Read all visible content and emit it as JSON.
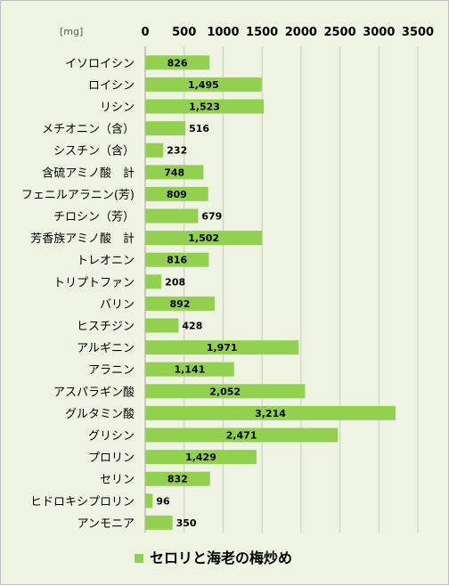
{
  "chart_data": {
    "type": "bar",
    "orientation": "horizontal",
    "unit_label": "[mg]",
    "xlim": [
      0,
      3500
    ],
    "ticks": [
      0,
      500,
      1000,
      1500,
      2000,
      2500,
      3000,
      3500
    ],
    "tick_labels": [
      "0",
      "500",
      "1000",
      "1500",
      "2000",
      "2500",
      "3000",
      "3500"
    ],
    "axis_position": "top",
    "grid": true,
    "legend_position": "bottom",
    "categories": [
      "イソロイシン",
      "ロイシン",
      "リシン",
      "メチオニン（含）",
      "シスチン（含）",
      "含硫アミノ酸　計",
      "フェニルアラニン(芳)",
      "チロシン（芳）",
      "芳香族アミノ酸　計",
      "トレオニン",
      "トリプトファン",
      "バリン",
      "ヒスチジン",
      "アルギニン",
      "アラニン",
      "アスパラギン酸",
      "グルタミン酸",
      "グリシン",
      "プロリン",
      "セリン",
      "ヒドロキシプロリン",
      "アンモニア"
    ],
    "series": [
      {
        "name": "セロリと海老の梅炒め",
        "color": "#92d050",
        "values": [
          826,
          1495,
          1523,
          516,
          232,
          748,
          809,
          679,
          1502,
          816,
          208,
          892,
          428,
          1971,
          1141,
          2052,
          3214,
          2471,
          1429,
          832,
          96,
          350
        ],
        "data_labels": [
          "826",
          "1,495",
          "1,523",
          "516",
          "232",
          "748",
          "809",
          "679",
          "1,502",
          "816",
          "208",
          "892",
          "428",
          "1,971",
          "1,141",
          "2,052",
          "3,214",
          "2,471",
          "1,429",
          "832",
          "96",
          "350"
        ]
      }
    ]
  }
}
